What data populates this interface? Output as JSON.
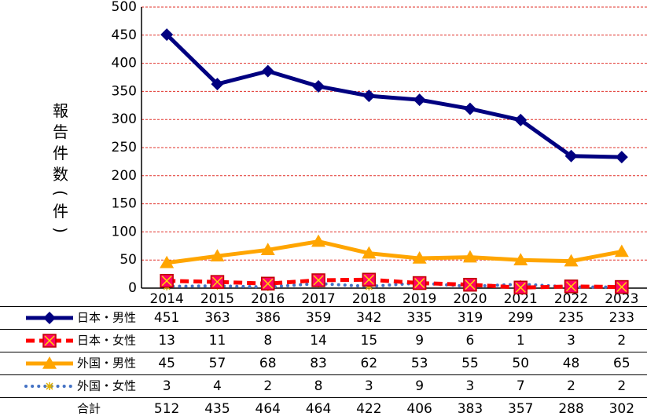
{
  "chart_data": {
    "type": "line",
    "ylabel_chars": [
      "報",
      "告",
      "件",
      "数",
      "(",
      "件",
      ")"
    ],
    "ylim": [
      0,
      500
    ],
    "yticks": [
      0,
      50,
      100,
      150,
      200,
      250,
      300,
      350,
      400,
      450,
      500
    ],
    "grid": "horizontal dashed red",
    "categories": [
      "2014",
      "2015",
      "2016",
      "2017",
      "2018",
      "2019",
      "2020",
      "2021",
      "2022",
      "2023"
    ],
    "series": [
      {
        "name": "日本・男性",
        "values": [
          451,
          363,
          386,
          359,
          342,
          335,
          319,
          299,
          235,
          233
        ],
        "color": "#000080",
        "marker": "diamond",
        "line": "solid"
      },
      {
        "name": "日本・女性",
        "values": [
          13,
          11,
          8,
          14,
          15,
          9,
          6,
          1,
          3,
          2
        ],
        "color": "#FF0000",
        "marker": "square",
        "line": "dashed"
      },
      {
        "name": "外国・男性",
        "values": [
          45,
          57,
          68,
          83,
          62,
          53,
          55,
          50,
          48,
          65
        ],
        "color": "#FFA500",
        "marker": "triangle",
        "line": "solid"
      },
      {
        "name": "外国・女性",
        "values": [
          3,
          4,
          2,
          8,
          3,
          9,
          3,
          7,
          2,
          2
        ],
        "color": "#4472C4",
        "marker": "star",
        "line": "dotted"
      }
    ],
    "total": {
      "name": "合計",
      "values": [
        512,
        435,
        464,
        464,
        422,
        406,
        383,
        357,
        288,
        302
      ]
    }
  }
}
